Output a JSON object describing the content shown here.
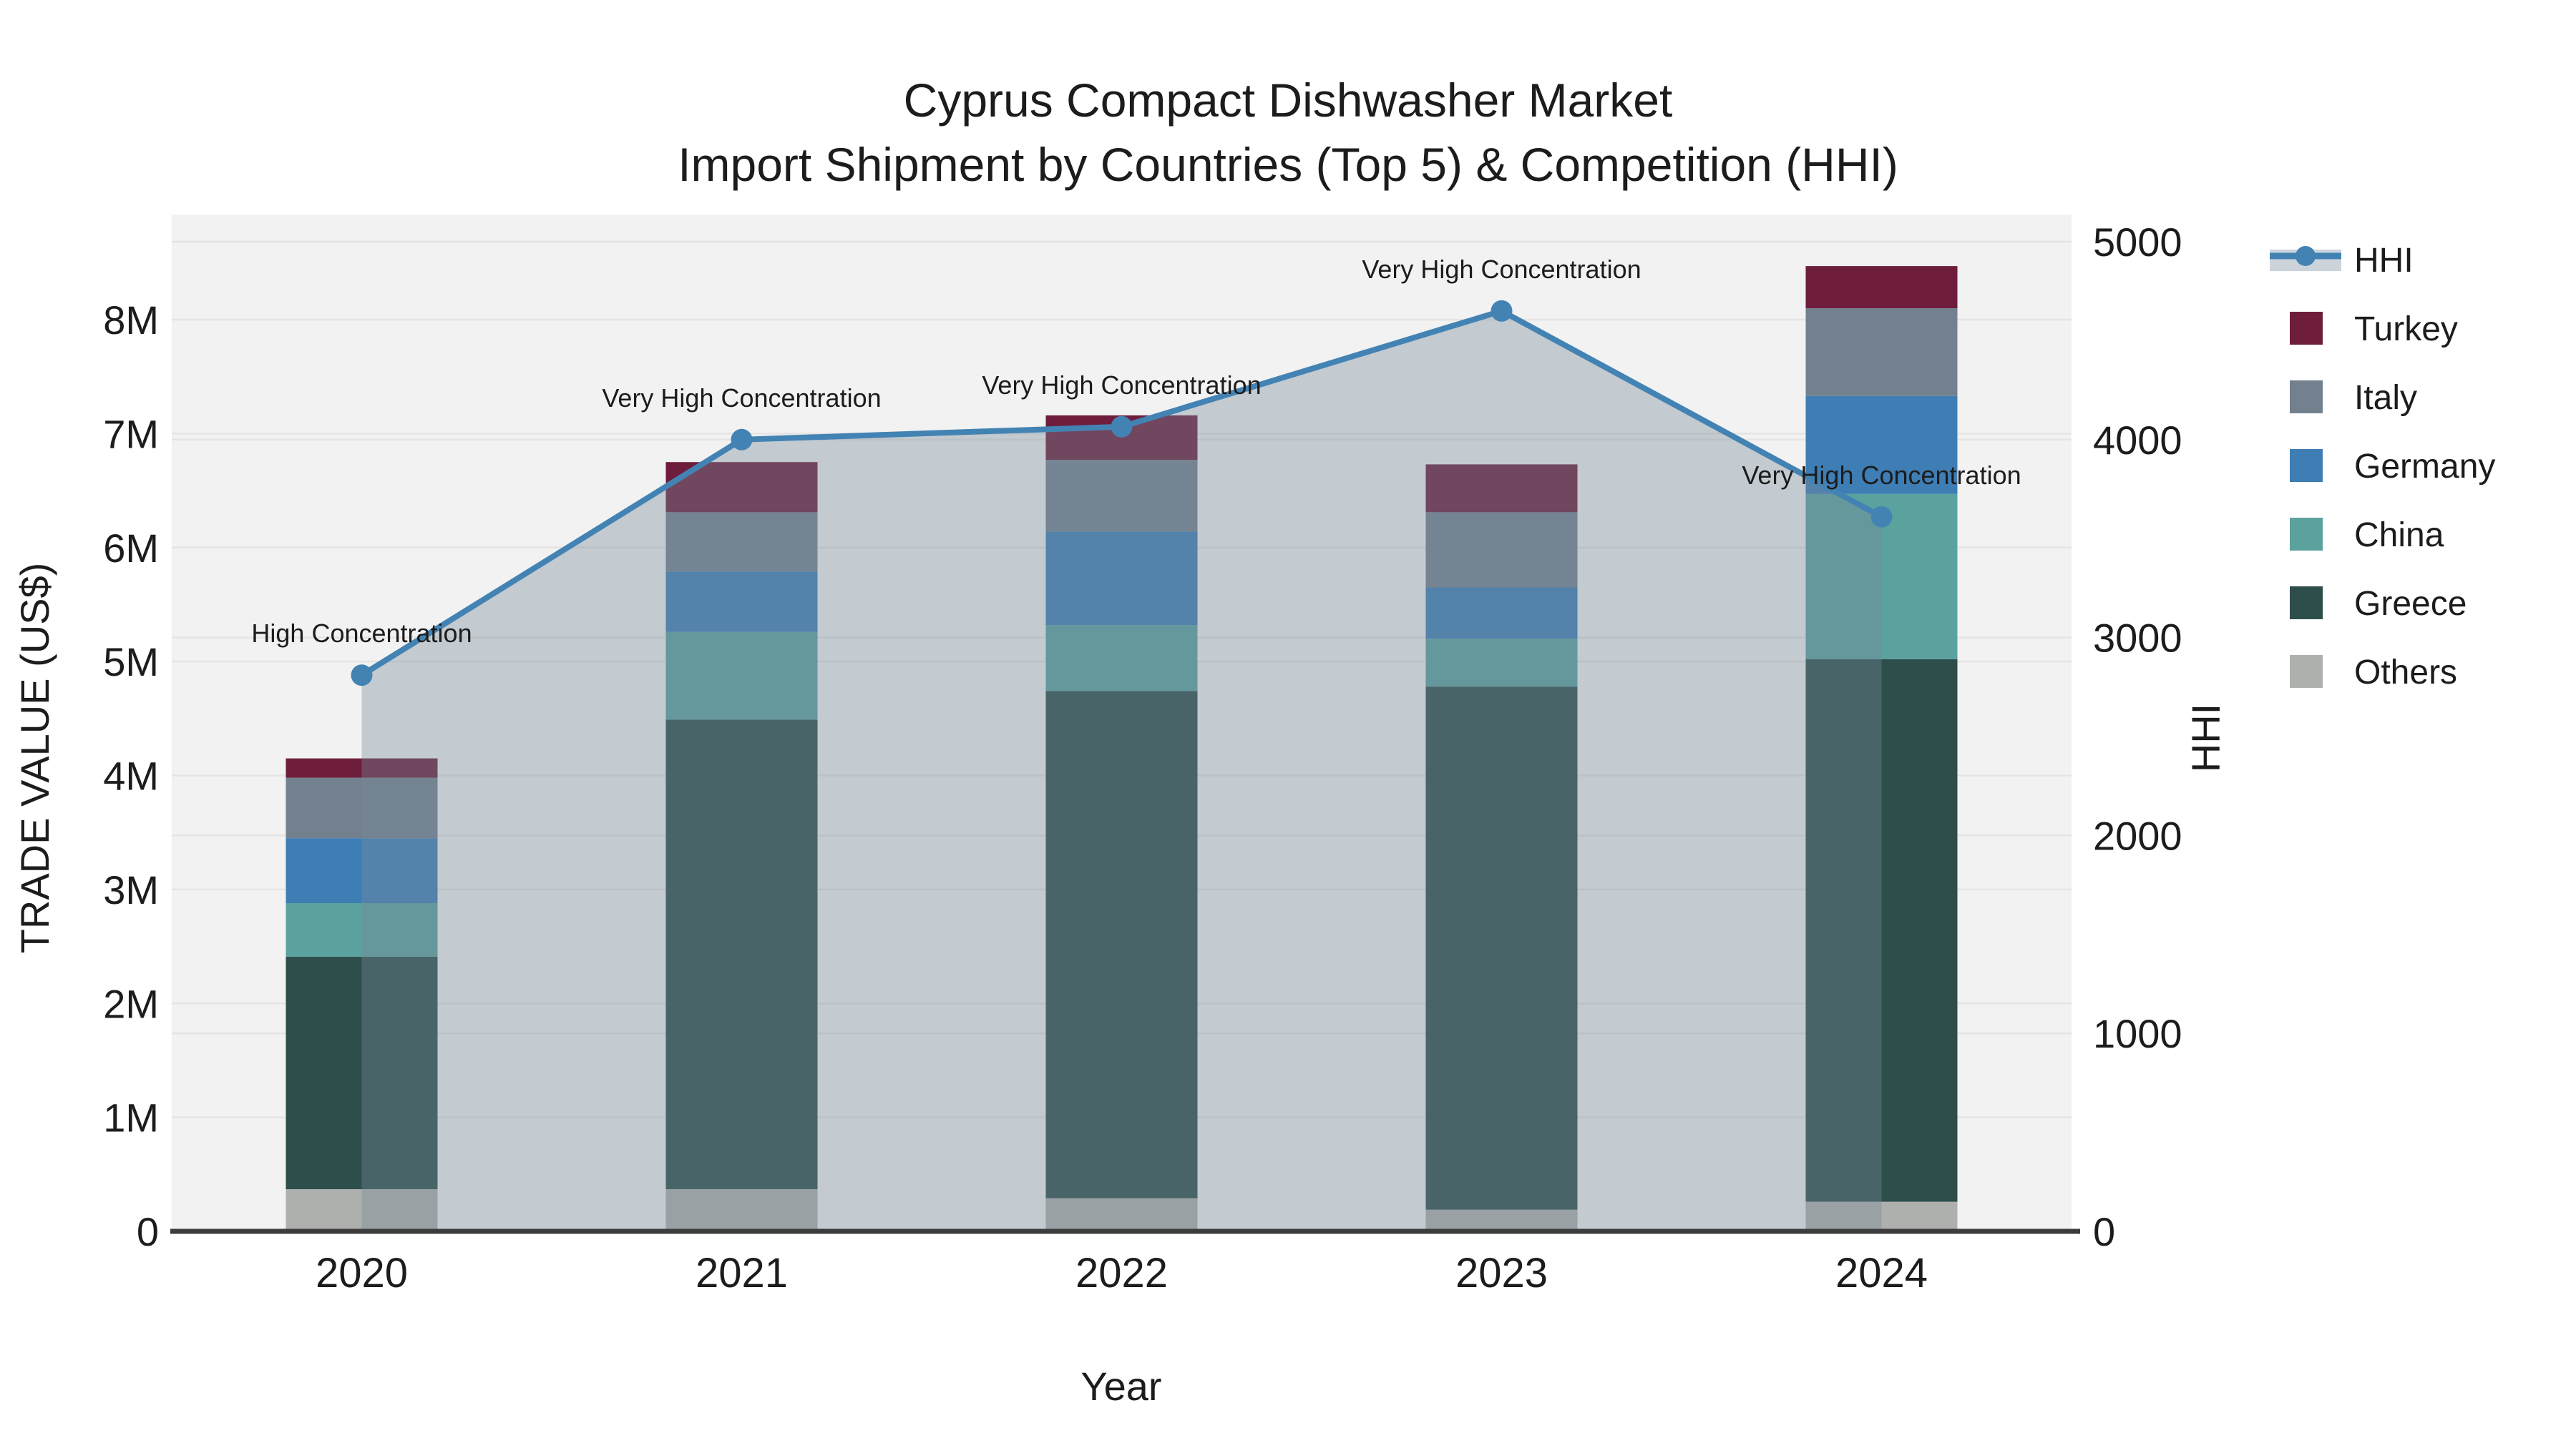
{
  "title": {
    "line1": "Cyprus Compact Dishwasher Market",
    "line2": "Import Shipment by Countries (Top 5) & Competition (HHI)"
  },
  "axes": {
    "left": {
      "title": "TRADE VALUE (US$)",
      "ticks": [
        "0",
        "1M",
        "2M",
        "3M",
        "4M",
        "5M",
        "6M",
        "7M",
        "8M"
      ]
    },
    "right": {
      "title": "HHI",
      "ticks": [
        "0",
        "1000",
        "2000",
        "3000",
        "4000",
        "5000"
      ]
    },
    "x": {
      "title": "Year"
    }
  },
  "legend": {
    "items": [
      {
        "label": "HHI",
        "type": "line",
        "color": "#4383B4"
      },
      {
        "label": "Turkey",
        "type": "swatch",
        "color": "#6E1E3C"
      },
      {
        "label": "Italy",
        "type": "swatch",
        "color": "#73818F"
      },
      {
        "label": "Germany",
        "type": "swatch",
        "color": "#3E7EB5"
      },
      {
        "label": "China",
        "type": "swatch",
        "color": "#5BA29F"
      },
      {
        "label": "Greece",
        "type": "swatch",
        "color": "#2E4E4B"
      },
      {
        "label": "Others",
        "type": "swatch",
        "color": "#AEB0AD"
      }
    ]
  },
  "colors": {
    "plot_bg": "#F2F2F2",
    "grid": "#E4E4E4",
    "axis_line": "#3C3C3C",
    "hhi_line": "#4383B4",
    "hhi_area_fill": "rgba(119,136,153,0.38)",
    "legend_band": "#CDD3DB",
    "text": "#1C1C1C"
  },
  "chart_data": {
    "type": "combo",
    "bar_mode": "stacked",
    "categories": [
      "2020",
      "2021",
      "2022",
      "2023",
      "2024"
    ],
    "bar_unit": "US$ millions",
    "series": [
      {
        "name": "Others",
        "color": "#AEB0AD",
        "values": [
          0.37,
          0.37,
          0.29,
          0.19,
          0.26
        ]
      },
      {
        "name": "Greece",
        "color": "#2E4E4B",
        "values": [
          2.04,
          4.12,
          4.45,
          4.59,
          4.76
        ]
      },
      {
        "name": "China",
        "color": "#5BA29F",
        "values": [
          0.47,
          0.77,
          0.58,
          0.42,
          1.45
        ]
      },
      {
        "name": "Germany",
        "color": "#3E7EB5",
        "values": [
          0.57,
          0.53,
          0.82,
          0.45,
          0.86
        ]
      },
      {
        "name": "Italy",
        "color": "#73818F",
        "values": [
          0.53,
          0.52,
          0.63,
          0.66,
          0.77
        ]
      },
      {
        "name": "Turkey",
        "color": "#6E1E3C",
        "values": [
          0.17,
          0.44,
          0.39,
          0.42,
          0.37
        ]
      }
    ],
    "bar_totals": [
      4.15,
      6.75,
      7.16,
      6.73,
      8.47
    ],
    "line": {
      "name": "HHI",
      "axis": "right",
      "values": [
        2810,
        4000,
        4065,
        4650,
        3610
      ],
      "area_fill": true
    },
    "annotations": [
      "High Concentration",
      "Very High Concentration",
      "Very High Concentration",
      "Very High Concentration",
      "Very High Concentration"
    ],
    "left_axis": {
      "label": "TRADE VALUE (US$)",
      "range": [
        0,
        8900000
      ],
      "tick_step": 1000000
    },
    "right_axis": {
      "label": "HHI",
      "range": [
        0,
        5140
      ],
      "tick_step": 1000
    },
    "x_axis": {
      "label": "Year"
    },
    "grid": true,
    "legend_position": "right"
  }
}
